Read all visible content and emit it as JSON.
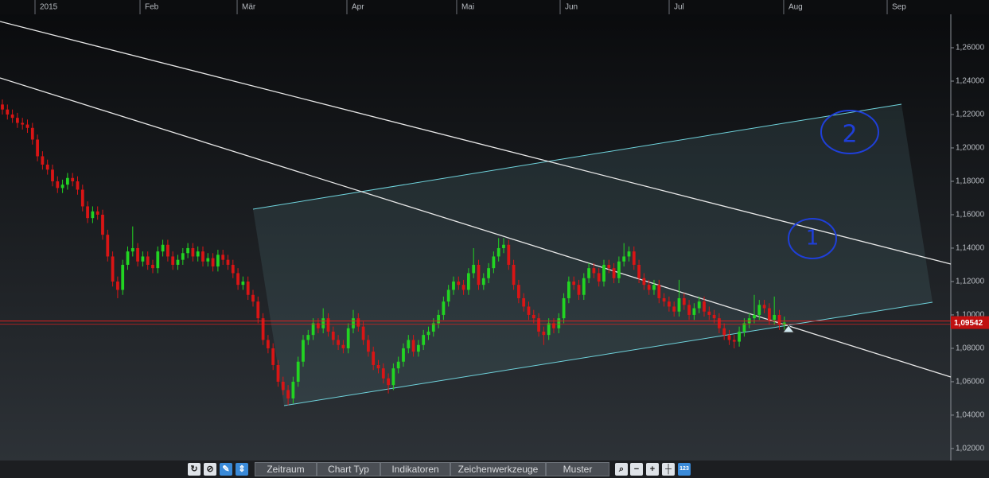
{
  "chart_data": {
    "type": "candlestick",
    "up_color": "#22d422",
    "down_color": "#d91515",
    "price_line_color": "#e02020",
    "grid": false,
    "xlim": [
      -0.476,
      189.21
    ],
    "xticks": [
      {
        "value": 6.51,
        "label": "2015"
      },
      {
        "value": 27.46,
        "label": "Feb"
      },
      {
        "value": 46.83,
        "label": "Mär"
      },
      {
        "value": 68.73,
        "label": "Apr"
      },
      {
        "value": 90.63,
        "label": "Mai"
      },
      {
        "value": 111.27,
        "label": "Jun"
      },
      {
        "value": 133.02,
        "label": "Jul"
      },
      {
        "value": 155.87,
        "label": "Aug"
      },
      {
        "value": 176.51,
        "label": "Sep"
      }
    ],
    "ylim": [
      1.0133,
      1.28
    ],
    "yticks": [
      {
        "value": 1.02,
        "label": "1,02000"
      },
      {
        "value": 1.04,
        "label": "1,04000"
      },
      {
        "value": 1.06,
        "label": "1,06000"
      },
      {
        "value": 1.08,
        "label": "1,08000"
      },
      {
        "value": 1.1,
        "label": "1,10000"
      },
      {
        "value": 1.12,
        "label": "1,12000"
      },
      {
        "value": 1.14,
        "label": "1,14000"
      },
      {
        "value": 1.16,
        "label": "1,16000"
      },
      {
        "value": 1.18,
        "label": "1,18000"
      },
      {
        "value": 1.2,
        "label": "1,20000"
      },
      {
        "value": 1.22,
        "label": "1,22000"
      },
      {
        "value": 1.24,
        "label": "1,24000"
      },
      {
        "value": 1.26,
        "label": "1,26000"
      }
    ],
    "last_price": {
      "value": 1.09542,
      "label": "1,09542"
    },
    "annotations": [
      "2",
      "1"
    ],
    "open": [
      1.226,
      1.223,
      1.22,
      1.218,
      1.215,
      1.214,
      1.212,
      1.205,
      1.195,
      1.19,
      1.187,
      1.18,
      1.176,
      1.178,
      1.182,
      1.18,
      1.175,
      1.165,
      1.158,
      1.162,
      1.16,
      1.148,
      1.135,
      1.12,
      1.115,
      1.13,
      1.138,
      1.14,
      1.132,
      1.135,
      1.13,
      1.128,
      1.138,
      1.142,
      1.135,
      1.13,
      1.133,
      1.137,
      1.14,
      1.135,
      1.138,
      1.132,
      1.134,
      1.129,
      1.136,
      1.133,
      1.13,
      1.125,
      1.118,
      1.12,
      1.112,
      1.108,
      1.098,
      1.085,
      1.08,
      1.07,
      1.06,
      1.055,
      1.05,
      1.06,
      1.072,
      1.085,
      1.088,
      1.095,
      1.092,
      1.098,
      1.09,
      1.085,
      1.082,
      1.08,
      1.092,
      1.098,
      1.093,
      1.085,
      1.078,
      1.07,
      1.068,
      1.062,
      1.058,
      1.068,
      1.072,
      1.08,
      1.085,
      1.078,
      1.082,
      1.088,
      1.09,
      1.095,
      1.1,
      1.108,
      1.115,
      1.12,
      1.118,
      1.115,
      1.125,
      1.13,
      1.118,
      1.122,
      1.128,
      1.135,
      1.14,
      1.142,
      1.13,
      1.118,
      1.11,
      1.105,
      1.1,
      1.098,
      1.09,
      1.088,
      1.095,
      1.092,
      1.098,
      1.11,
      1.12,
      1.118,
      1.112,
      1.122,
      1.128,
      1.125,
      1.12,
      1.13,
      1.128,
      1.122,
      1.132,
      1.135,
      1.138,
      1.13,
      1.122,
      1.118,
      1.115,
      1.118,
      1.11,
      1.108,
      1.105,
      1.102,
      1.11,
      1.106,
      1.1,
      1.104,
      1.108,
      1.102,
      1.1,
      1.098,
      1.092,
      1.088,
      1.085,
      1.084,
      1.09,
      1.095,
      1.098,
      1.1,
      1.106,
      1.104,
      1.097,
      1.1,
      1.094
    ],
    "high": [
      1.229,
      1.226,
      1.223,
      1.221,
      1.218,
      1.217,
      1.215,
      1.208,
      1.198,
      1.193,
      1.19,
      1.183,
      1.181,
      1.185,
      1.185,
      1.183,
      1.178,
      1.168,
      1.165,
      1.165,
      1.163,
      1.151,
      1.138,
      1.123,
      1.133,
      1.141,
      1.153,
      1.143,
      1.138,
      1.138,
      1.133,
      1.141,
      1.145,
      1.145,
      1.138,
      1.136,
      1.14,
      1.143,
      1.143,
      1.141,
      1.141,
      1.137,
      1.137,
      1.139,
      1.139,
      1.136,
      1.133,
      1.128,
      1.123,
      1.123,
      1.115,
      1.111,
      1.101,
      1.088,
      1.083,
      1.073,
      1.063,
      1.058,
      1.063,
      1.075,
      1.088,
      1.091,
      1.098,
      1.098,
      1.104,
      1.101,
      1.093,
      1.088,
      1.085,
      1.095,
      1.103,
      1.101,
      1.096,
      1.088,
      1.081,
      1.073,
      1.071,
      1.065,
      1.071,
      1.075,
      1.083,
      1.088,
      1.088,
      1.085,
      1.091,
      1.093,
      1.098,
      1.103,
      1.111,
      1.118,
      1.123,
      1.123,
      1.121,
      1.128,
      1.14,
      1.133,
      1.125,
      1.131,
      1.138,
      1.146,
      1.146,
      1.145,
      1.133,
      1.121,
      1.113,
      1.108,
      1.103,
      1.101,
      1.093,
      1.098,
      1.098,
      1.101,
      1.113,
      1.123,
      1.123,
      1.121,
      1.125,
      1.131,
      1.131,
      1.128,
      1.133,
      1.133,
      1.131,
      1.135,
      1.143,
      1.141,
      1.141,
      1.133,
      1.125,
      1.121,
      1.121,
      1.121,
      1.113,
      1.111,
      1.108,
      1.121,
      1.113,
      1.109,
      1.107,
      1.111,
      1.111,
      1.105,
      1.103,
      1.101,
      1.095,
      1.091,
      1.088,
      1.093,
      1.098,
      1.101,
      1.112,
      1.109,
      1.109,
      1.107,
      1.111,
      1.103,
      1.099
    ],
    "low": [
      1.22,
      1.217,
      1.215,
      1.212,
      1.211,
      1.209,
      1.202,
      1.192,
      1.187,
      1.184,
      1.177,
      1.173,
      1.173,
      1.175,
      1.177,
      1.172,
      1.162,
      1.155,
      1.155,
      1.157,
      1.145,
      1.132,
      1.117,
      1.11,
      1.112,
      1.127,
      1.135,
      1.129,
      1.129,
      1.127,
      1.125,
      1.125,
      1.135,
      1.132,
      1.127,
      1.127,
      1.13,
      1.134,
      1.132,
      1.132,
      1.129,
      1.129,
      1.126,
      1.126,
      1.13,
      1.127,
      1.122,
      1.115,
      1.115,
      1.109,
      1.105,
      1.095,
      1.082,
      1.077,
      1.067,
      1.057,
      1.052,
      1.046,
      1.047,
      1.057,
      1.069,
      1.082,
      1.085,
      1.089,
      1.089,
      1.087,
      1.082,
      1.079,
      1.077,
      1.077,
      1.089,
      1.09,
      1.082,
      1.075,
      1.067,
      1.065,
      1.059,
      1.053,
      1.055,
      1.065,
      1.069,
      1.077,
      1.075,
      1.075,
      1.079,
      1.085,
      1.087,
      1.092,
      1.097,
      1.105,
      1.112,
      1.115,
      1.112,
      1.112,
      1.122,
      1.115,
      1.115,
      1.119,
      1.125,
      1.132,
      1.137,
      1.127,
      1.115,
      1.107,
      1.102,
      1.097,
      1.095,
      1.087,
      1.082,
      1.085,
      1.089,
      1.089,
      1.095,
      1.107,
      1.115,
      1.109,
      1.109,
      1.119,
      1.122,
      1.117,
      1.117,
      1.125,
      1.119,
      1.119,
      1.129,
      1.132,
      1.127,
      1.119,
      1.115,
      1.112,
      1.112,
      1.107,
      1.105,
      1.102,
      1.099,
      1.099,
      1.103,
      1.097,
      1.097,
      1.101,
      1.099,
      1.097,
      1.095,
      1.089,
      1.085,
      1.082,
      1.08,
      1.081,
      1.087,
      1.092,
      1.095,
      1.097,
      1.101,
      1.094,
      1.094,
      1.091,
      1.091
    ],
    "close": [
      1.223,
      1.22,
      1.218,
      1.215,
      1.214,
      1.212,
      1.205,
      1.195,
      1.19,
      1.187,
      1.18,
      1.176,
      1.178,
      1.182,
      1.18,
      1.175,
      1.165,
      1.158,
      1.162,
      1.16,
      1.148,
      1.135,
      1.12,
      1.115,
      1.13,
      1.138,
      1.14,
      1.132,
      1.135,
      1.13,
      1.128,
      1.138,
      1.142,
      1.135,
      1.13,
      1.133,
      1.137,
      1.14,
      1.135,
      1.138,
      1.132,
      1.134,
      1.129,
      1.136,
      1.133,
      1.13,
      1.125,
      1.118,
      1.12,
      1.112,
      1.108,
      1.098,
      1.085,
      1.08,
      1.07,
      1.06,
      1.055,
      1.05,
      1.06,
      1.072,
      1.085,
      1.088,
      1.095,
      1.092,
      1.098,
      1.09,
      1.085,
      1.082,
      1.08,
      1.092,
      1.098,
      1.093,
      1.085,
      1.078,
      1.07,
      1.068,
      1.062,
      1.058,
      1.068,
      1.072,
      1.08,
      1.085,
      1.078,
      1.082,
      1.088,
      1.09,
      1.095,
      1.1,
      1.108,
      1.115,
      1.12,
      1.118,
      1.115,
      1.125,
      1.13,
      1.118,
      1.122,
      1.128,
      1.135,
      1.14,
      1.142,
      1.13,
      1.118,
      1.11,
      1.105,
      1.1,
      1.098,
      1.09,
      1.088,
      1.095,
      1.092,
      1.098,
      1.11,
      1.12,
      1.118,
      1.112,
      1.122,
      1.128,
      1.125,
      1.12,
      1.13,
      1.128,
      1.122,
      1.132,
      1.135,
      1.138,
      1.13,
      1.122,
      1.118,
      1.115,
      1.118,
      1.11,
      1.108,
      1.105,
      1.102,
      1.11,
      1.106,
      1.1,
      1.104,
      1.108,
      1.102,
      1.1,
      1.098,
      1.092,
      1.088,
      1.085,
      1.084,
      1.09,
      1.095,
      1.098,
      1.1,
      1.106,
      1.104,
      1.097,
      1.1,
      1.094,
      1.09542
    ]
  },
  "toolbar": {
    "tabs": [
      "Zeitraum",
      "Chart Typ",
      "Indikatoren",
      "Zeichenwerkzeuge",
      "Muster"
    ]
  }
}
